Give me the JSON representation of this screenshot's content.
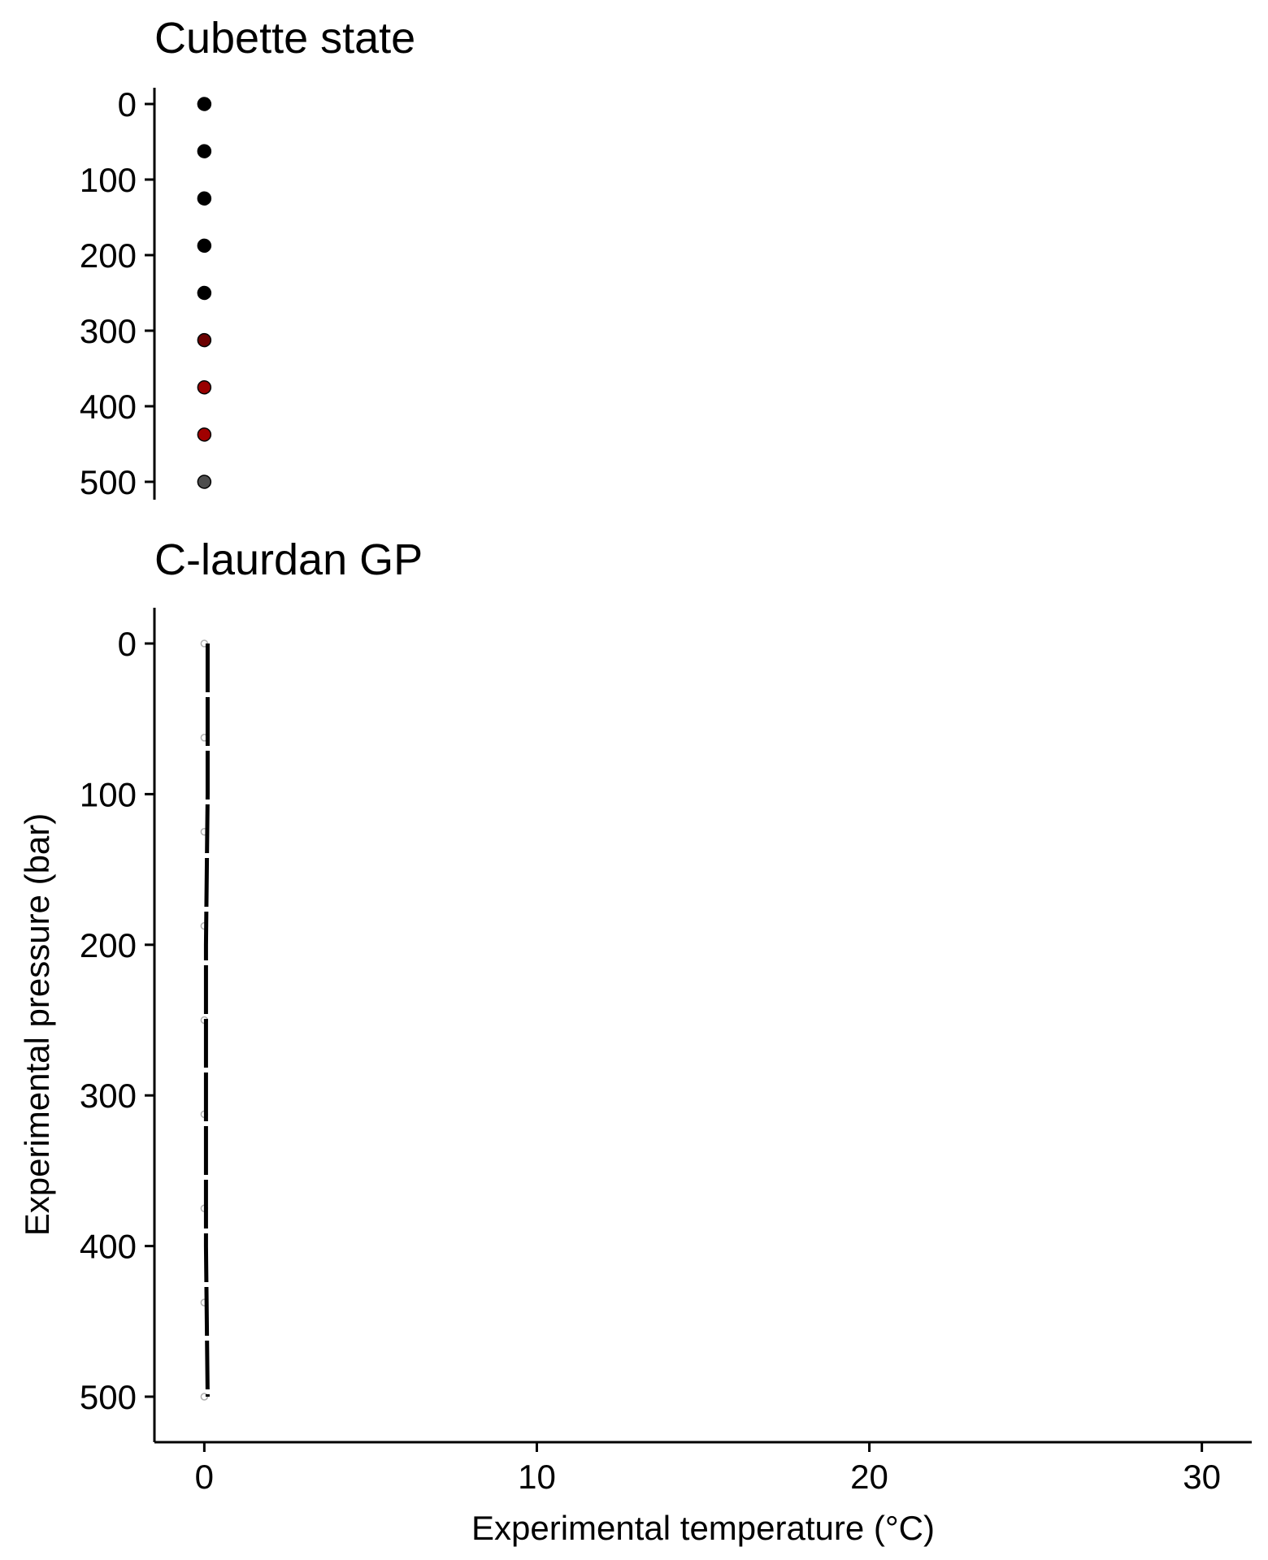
{
  "chart_data": [
    {
      "type": "scatter",
      "title": "Cubette state",
      "xlabel": "",
      "ylabel": "",
      "y_reversed": true,
      "xlim": [
        -1.5,
        31.5
      ],
      "ylim": [
        0,
        525
      ],
      "y_ticks": [
        0,
        100,
        200,
        300,
        400,
        500
      ],
      "x_ticks": [],
      "grid": false,
      "points": [
        {
          "x": 0,
          "y": 0,
          "color": "#000000"
        },
        {
          "x": 0,
          "y": 62.5,
          "color": "#000000"
        },
        {
          "x": 0,
          "y": 125,
          "color": "#000000"
        },
        {
          "x": 0,
          "y": 187.5,
          "color": "#000000"
        },
        {
          "x": 0,
          "y": 250,
          "color": "#000000"
        },
        {
          "x": 0,
          "y": 312.5,
          "color": "#6b0000"
        },
        {
          "x": 0,
          "y": 375,
          "color": "#990000"
        },
        {
          "x": 0,
          "y": 437.5,
          "color": "#a00000"
        },
        {
          "x": 0,
          "y": 500,
          "color": "#4d4d4d"
        }
      ]
    },
    {
      "type": "line",
      "title": "C-laurdan GP",
      "xlabel": "Experimental temperature (°C)",
      "ylabel": "Experimental pressure (bar)",
      "y_reversed": true,
      "xlim": [
        -1.5,
        31.5
      ],
      "ylim": [
        -25,
        525
      ],
      "y_ticks": [
        0,
        100,
        200,
        300,
        400,
        500
      ],
      "x_ticks": [
        0,
        10,
        20,
        30
      ],
      "grid": false,
      "line_points": [
        {
          "x": 0.1,
          "y": 0
        },
        {
          "x": 0.1,
          "y": 100
        },
        {
          "x": 0.05,
          "y": 200
        },
        {
          "x": 0.05,
          "y": 300
        },
        {
          "x": 0.05,
          "y": 400
        },
        {
          "x": 0.1,
          "y": 500
        }
      ],
      "open_points": [
        {
          "x": 0,
          "y": 0
        },
        {
          "x": 0,
          "y": 62.5
        },
        {
          "x": 0,
          "y": 125
        },
        {
          "x": 0,
          "y": 187.5
        },
        {
          "x": 0,
          "y": 250
        },
        {
          "x": 0,
          "y": 312.5
        },
        {
          "x": 0,
          "y": 375
        },
        {
          "x": 0,
          "y": 437.5
        },
        {
          "x": 0,
          "y": 500
        }
      ]
    }
  ]
}
